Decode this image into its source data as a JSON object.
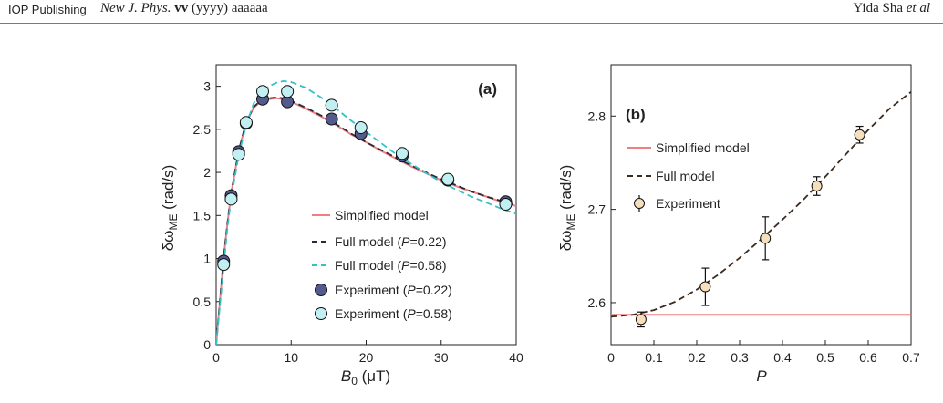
{
  "header": {
    "publisher": "IOP Publishing",
    "journal_name": "New J. Phys.",
    "journal_volume": "vv",
    "journal_rest": " (yyyy) aaaaaa",
    "authors": "Yida Sha",
    "authors_suffix": "et al"
  },
  "colors": {
    "simplified": "#f08080",
    "full_a": "#2a2a3a",
    "full_b": "#38c0c8",
    "exp_a": "#545a8c",
    "exp_b": "#c2eff2",
    "exp_panel_b": "#f6dfbd",
    "full_panel_b": "#3d2b1f"
  },
  "chart_data": [
    {
      "type": "line",
      "panel_label": "(a)",
      "xlabel": {
        "symbol": "B",
        "sub": "0",
        "unit": " (μT)"
      },
      "ylabel": {
        "symbol": "δω",
        "sub": "ME",
        "unit": " (rad/s)"
      },
      "xlim": [
        0,
        40
      ],
      "ylim": [
        0,
        3.25
      ],
      "xticks": [
        "0",
        "10",
        "20",
        "30",
        "40"
      ],
      "yticks": [
        "0",
        "0.5",
        "1",
        "1.5",
        "2",
        "2.5",
        "3"
      ],
      "legend_position": "bottom-right",
      "series": [
        {
          "name": "Simplified model",
          "kind": "line",
          "style": "solid",
          "x": [
            0,
            0.5,
            1,
            1.5,
            2,
            3,
            4,
            5,
            6,
            7,
            8,
            9,
            10,
            12,
            14,
            16,
            18,
            20,
            22,
            24,
            26,
            28,
            30,
            32,
            34,
            36,
            38,
            40
          ],
          "y": [
            0,
            0.5,
            1.0,
            1.4,
            1.75,
            2.25,
            2.58,
            2.75,
            2.83,
            2.85,
            2.86,
            2.85,
            2.82,
            2.74,
            2.65,
            2.55,
            2.44,
            2.35,
            2.25,
            2.16,
            2.07,
            1.99,
            1.91,
            1.84,
            1.78,
            1.72,
            1.66,
            1.61
          ]
        },
        {
          "name_prefix": "Full model (",
          "name_var": "P",
          "name_suffix": "=0.22)",
          "kind": "line",
          "style": "dashed",
          "x": [
            0,
            0.5,
            1,
            1.5,
            2,
            3,
            4,
            5,
            6,
            7,
            8,
            9,
            10,
            12,
            14,
            16,
            18,
            20,
            22,
            24,
            26,
            28,
            30,
            32,
            34,
            36,
            38,
            40
          ],
          "y": [
            0,
            0.5,
            1.0,
            1.4,
            1.75,
            2.25,
            2.58,
            2.76,
            2.84,
            2.86,
            2.87,
            2.86,
            2.83,
            2.75,
            2.66,
            2.56,
            2.45,
            2.35,
            2.26,
            2.17,
            2.08,
            2.0,
            1.92,
            1.85,
            1.78,
            1.72,
            1.67,
            1.62
          ]
        },
        {
          "name_prefix": "Full model (",
          "name_var": "P",
          "name_suffix": "=0.58)",
          "kind": "line",
          "style": "dashed",
          "x": [
            0,
            0.5,
            1,
            1.5,
            2,
            3,
            4,
            5,
            6,
            7,
            8,
            9,
            10,
            12,
            14,
            16,
            18,
            20,
            22,
            24,
            26,
            28,
            30,
            32,
            34,
            36,
            38,
            40
          ],
          "y": [
            0,
            0.45,
            0.9,
            1.35,
            1.7,
            2.2,
            2.55,
            2.8,
            2.93,
            3.0,
            3.04,
            3.06,
            3.05,
            2.98,
            2.87,
            2.74,
            2.6,
            2.47,
            2.34,
            2.21,
            2.1,
            1.99,
            1.89,
            1.8,
            1.72,
            1.65,
            1.58,
            1.52
          ]
        },
        {
          "name_prefix": "Experiment (",
          "name_var": "P",
          "name_suffix": "=0.22)",
          "kind": "points",
          "x": [
            1,
            2,
            3,
            4,
            6.2,
            9.5,
            15.4,
            19.3,
            24.8,
            30.9,
            38.6
          ],
          "y": [
            0.97,
            1.73,
            2.24,
            2.57,
            2.85,
            2.82,
            2.62,
            2.45,
            2.19,
            1.91,
            1.66
          ]
        },
        {
          "name_prefix": "Experiment (",
          "name_var": "P",
          "name_suffix": "=0.58)",
          "kind": "points",
          "x": [
            1,
            2,
            3,
            4,
            6.2,
            9.5,
            15.4,
            19.3,
            24.8,
            30.9,
            38.6
          ],
          "y": [
            0.93,
            1.69,
            2.21,
            2.58,
            2.94,
            2.94,
            2.78,
            2.52,
            2.22,
            1.92,
            1.63
          ]
        }
      ]
    },
    {
      "type": "scatter",
      "panel_label": "(b)",
      "xlabel": {
        "symbol": "P"
      },
      "ylabel": {
        "symbol": "δω",
        "sub": "ME",
        "unit": " (rad/s)"
      },
      "xlim": [
        0,
        0.7
      ],
      "ylim": [
        2.555,
        2.855
      ],
      "xticks": [
        "0",
        "0.1",
        "0.2",
        "0.3",
        "0.4",
        "0.5",
        "0.6",
        "0.7"
      ],
      "yticks": [
        "2.6",
        "2.7",
        "2.8"
      ],
      "legend_position": "top-left",
      "series": [
        {
          "name": "Simplified model",
          "kind": "line",
          "style": "solid",
          "x": [
            0,
            0.7
          ],
          "y": [
            2.587,
            2.587
          ]
        },
        {
          "name": "Full model",
          "kind": "line",
          "style": "dashed",
          "x": [
            0,
            0.05,
            0.1,
            0.15,
            0.2,
            0.25,
            0.3,
            0.35,
            0.4,
            0.45,
            0.5,
            0.55,
            0.6,
            0.65,
            0.7
          ],
          "y": [
            2.585,
            2.587,
            2.592,
            2.601,
            2.614,
            2.63,
            2.648,
            2.668,
            2.689,
            2.711,
            2.735,
            2.76,
            2.785,
            2.808,
            2.826
          ]
        },
        {
          "name": "Experiment",
          "kind": "errorbar",
          "x": [
            0.07,
            0.22,
            0.36,
            0.48,
            0.58
          ],
          "y": [
            2.582,
            2.617,
            2.669,
            2.725,
            2.78
          ],
          "err": [
            0.008,
            0.02,
            0.023,
            0.01,
            0.009
          ]
        }
      ]
    }
  ]
}
